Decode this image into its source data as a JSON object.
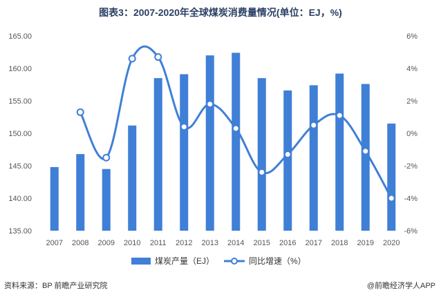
{
  "title": "图表3：2007-2020年全球煤炭消费量情况(单位：EJ，%)",
  "source": "资料来源：BP 前瞻产业研究院",
  "credit": "@前瞻经济学人APP",
  "chart_data": {
    "type": "bar",
    "categories": [
      "2007",
      "2008",
      "2009",
      "2010",
      "2011",
      "2012",
      "2013",
      "2014",
      "2015",
      "2016",
      "2017",
      "2018",
      "2019",
      "2020"
    ],
    "series": [
      {
        "name": "煤炭产量（EJ）",
        "type": "bar",
        "axis": "left",
        "values": [
          144.8,
          146.8,
          144.5,
          151.2,
          158.5,
          159.1,
          162.0,
          162.4,
          158.5,
          156.6,
          157.4,
          159.2,
          157.6,
          151.5
        ]
      },
      {
        "name": "同比增速（%）",
        "type": "line",
        "axis": "right",
        "values": [
          null,
          1.3,
          -1.5,
          4.6,
          4.7,
          0.4,
          1.8,
          0.3,
          -2.4,
          -1.3,
          0.5,
          1.1,
          -1.1,
          -4.0
        ]
      }
    ],
    "left_axis": {
      "ylim": [
        135,
        165
      ],
      "ticks": [
        "135.00",
        "140.00",
        "145.00",
        "150.00",
        "155.00",
        "160.00",
        "165.00"
      ]
    },
    "right_axis": {
      "ylim": [
        -6,
        6
      ],
      "ticks": [
        "-6%",
        "-4%",
        "-2%",
        "0%",
        "2%",
        "4%",
        "6%"
      ]
    },
    "colors": {
      "bar": "#3f7fd6",
      "line": "#3f7fd6"
    }
  }
}
